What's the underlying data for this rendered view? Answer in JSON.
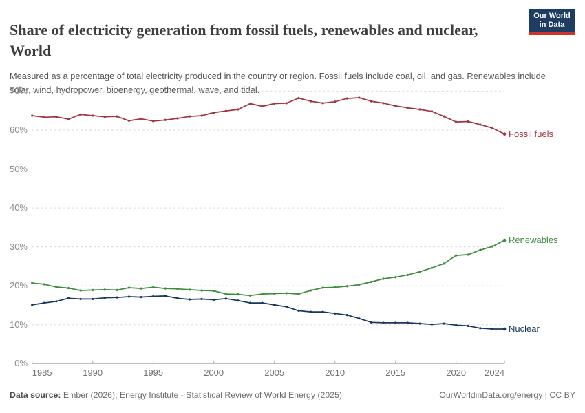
{
  "header": {
    "title": "Share of electricity generation from fossil fuels, renewables and nuclear, World",
    "subtitle": "Measured as a percentage of total electricity produced in the country or region. Fossil fuels include coal, oil, and gas. Renewables include solar, wind, hydropower, bioenergy, geothermal, wave, and tidal.",
    "logo": {
      "line1": "Our World",
      "line2": "in Data"
    }
  },
  "chart_data": {
    "type": "line",
    "title": "Share of electricity generation from fossil fuels, renewables and nuclear, World",
    "xlabel": "",
    "ylabel": "",
    "ylim": [
      0,
      70
    ],
    "ytick_labels": [
      "0%",
      "10%",
      "20%",
      "30%",
      "40%",
      "50%",
      "60%",
      "70%"
    ],
    "xtick_years": [
      1985,
      1990,
      1995,
      2000,
      2005,
      2010,
      2015,
      2020,
      2024
    ],
    "grid": "horizontal-dashed",
    "legend_position": "line-end-labels",
    "x": [
      1985,
      1986,
      1987,
      1988,
      1989,
      1990,
      1991,
      1992,
      1993,
      1994,
      1995,
      1996,
      1997,
      1998,
      1999,
      2000,
      2001,
      2002,
      2003,
      2004,
      2005,
      2006,
      2007,
      2008,
      2009,
      2010,
      2011,
      2012,
      2013,
      2014,
      2015,
      2016,
      2017,
      2018,
      2019,
      2020,
      2021,
      2022,
      2023,
      2024
    ],
    "series": [
      {
        "name": "Fossil fuels",
        "color": "#a0343f",
        "values": [
          63.7,
          63.3,
          63.4,
          62.8,
          64.0,
          63.7,
          63.4,
          63.5,
          62.4,
          62.9,
          62.3,
          62.6,
          63.0,
          63.5,
          63.7,
          64.5,
          64.9,
          65.3,
          66.8,
          66.1,
          66.8,
          66.9,
          68.2,
          67.4,
          66.9,
          67.3,
          68.1,
          68.3,
          67.4,
          66.9,
          66.2,
          65.7,
          65.3,
          64.8,
          63.5,
          62.1,
          62.2,
          61.4,
          60.5,
          59.0
        ]
      },
      {
        "name": "Renewables",
        "color": "#3b8c3b",
        "values": [
          20.7,
          20.4,
          19.7,
          19.4,
          18.8,
          18.9,
          19.0,
          18.9,
          19.5,
          19.3,
          19.6,
          19.3,
          19.2,
          19.0,
          18.8,
          18.7,
          17.9,
          17.8,
          17.5,
          17.9,
          18.0,
          18.1,
          17.9,
          18.8,
          19.5,
          19.6,
          19.9,
          20.3,
          21.0,
          21.8,
          22.2,
          22.8,
          23.6,
          24.6,
          25.7,
          27.8,
          28.0,
          29.2,
          30.1,
          31.7
        ]
      },
      {
        "name": "Nuclear",
        "color": "#18375f",
        "values": [
          15.1,
          15.6,
          16.0,
          16.8,
          16.6,
          16.6,
          16.9,
          17.0,
          17.2,
          17.1,
          17.3,
          17.4,
          16.8,
          16.5,
          16.6,
          16.4,
          16.7,
          16.2,
          15.6,
          15.6,
          15.1,
          14.6,
          13.6,
          13.3,
          13.3,
          12.9,
          12.5,
          11.6,
          10.6,
          10.5,
          10.5,
          10.5,
          10.3,
          10.1,
          10.3,
          9.9,
          9.7,
          9.1,
          8.9,
          8.9
        ]
      }
    ]
  },
  "footer": {
    "source_label": "Data source:",
    "source_text": " Ember (2026); Energy Institute - Statistical Review of World Energy (2025)",
    "credit": "OurWorldinData.org/energy | CC BY"
  }
}
